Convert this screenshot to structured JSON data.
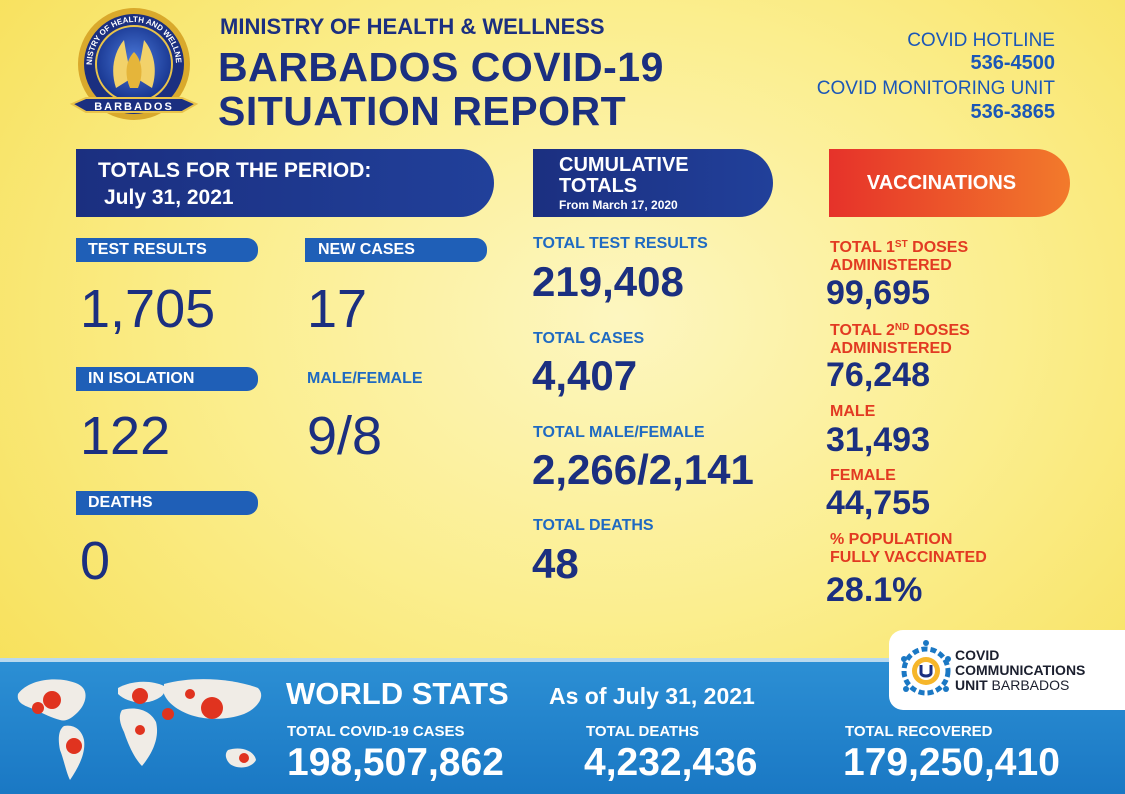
{
  "header": {
    "seal_text_top": "MINISTRY OF HEALTH AND WELLNESS",
    "seal_text_bottom": "BARBADOS",
    "ministry": "MINISTRY OF HEALTH & WELLNESS",
    "title_line1": "BARBADOS COVID-19",
    "title_line2": "SITUATION REPORT",
    "hotline_label": "COVID HOTLINE",
    "hotline_number": "536-4500",
    "monitoring_label": "COVID MONITORING UNIT",
    "monitoring_number": "536-3865"
  },
  "period": {
    "heading": "TOTALS FOR THE PERIOD:",
    "date": "July 31, 2021",
    "test_results_label": "TEST RESULTS",
    "test_results_value": "1,705",
    "new_cases_label": "NEW CASES",
    "new_cases_value": "17",
    "isolation_label": "IN ISOLATION",
    "isolation_value": "122",
    "male_female_label": "MALE/FEMALE",
    "male_female_value": "9/8",
    "deaths_label": "DEATHS",
    "deaths_value": "0"
  },
  "cumulative": {
    "heading_line1": "CUMULATIVE",
    "heading_line2": "TOTALS",
    "heading_line3": "From March 17, 2020",
    "test_results_label": "TOTAL TEST RESULTS",
    "test_results_value": "219,408",
    "cases_label": "TOTAL CASES",
    "cases_value": "4,407",
    "male_female_label": "TOTAL MALE/FEMALE",
    "male_female_value": "2,266/2,141",
    "deaths_label": "TOTAL DEATHS",
    "deaths_value": "48"
  },
  "vaccinations": {
    "heading": "VACCINATIONS",
    "first_label_a": "TOTAL 1",
    "first_label_sup": "ST",
    "first_label_b": " DOSES",
    "first_label_line2": "ADMINISTERED",
    "first_value": "99,695",
    "second_label_a": "TOTAL 2",
    "second_label_sup": "ND",
    "second_label_b": " DOSES",
    "second_label_line2": "ADMINISTERED",
    "second_value": "76,248",
    "male_label": "MALE",
    "male_value": "31,493",
    "female_label": "FEMALE",
    "female_value": "44,755",
    "population_label_line1": "% POPULATION",
    "population_label_line2": "FULLY VACCINATED",
    "population_value": "28.1%"
  },
  "world": {
    "title": "WORLD STATS",
    "as_of": "As of July 31, 2021",
    "cases_label": "TOTAL COVID-19 CASES",
    "cases_value": "198,507,862",
    "deaths_label": "TOTAL DEATHS",
    "deaths_value": "4,232,436",
    "recovered_label": "TOTAL RECOVERED",
    "recovered_value": "179,250,410"
  },
  "ccu": {
    "line1": "COVID",
    "line2": "COMMUNICATIONS",
    "line3a": "UNIT",
    "line3b": " BARBADOS"
  },
  "colors": {
    "navy": "#1b2f80",
    "blue": "#1f5fb7",
    "red": "#e23a22",
    "orange": "#f27a2b",
    "yellow_bg": "#fbee8e",
    "world_blue": "#1a78c4"
  },
  "icons": {
    "seal": "ministry-seal-icon",
    "map": "world-map-virus-icon",
    "ccu": "covid-communications-unit-logo"
  }
}
